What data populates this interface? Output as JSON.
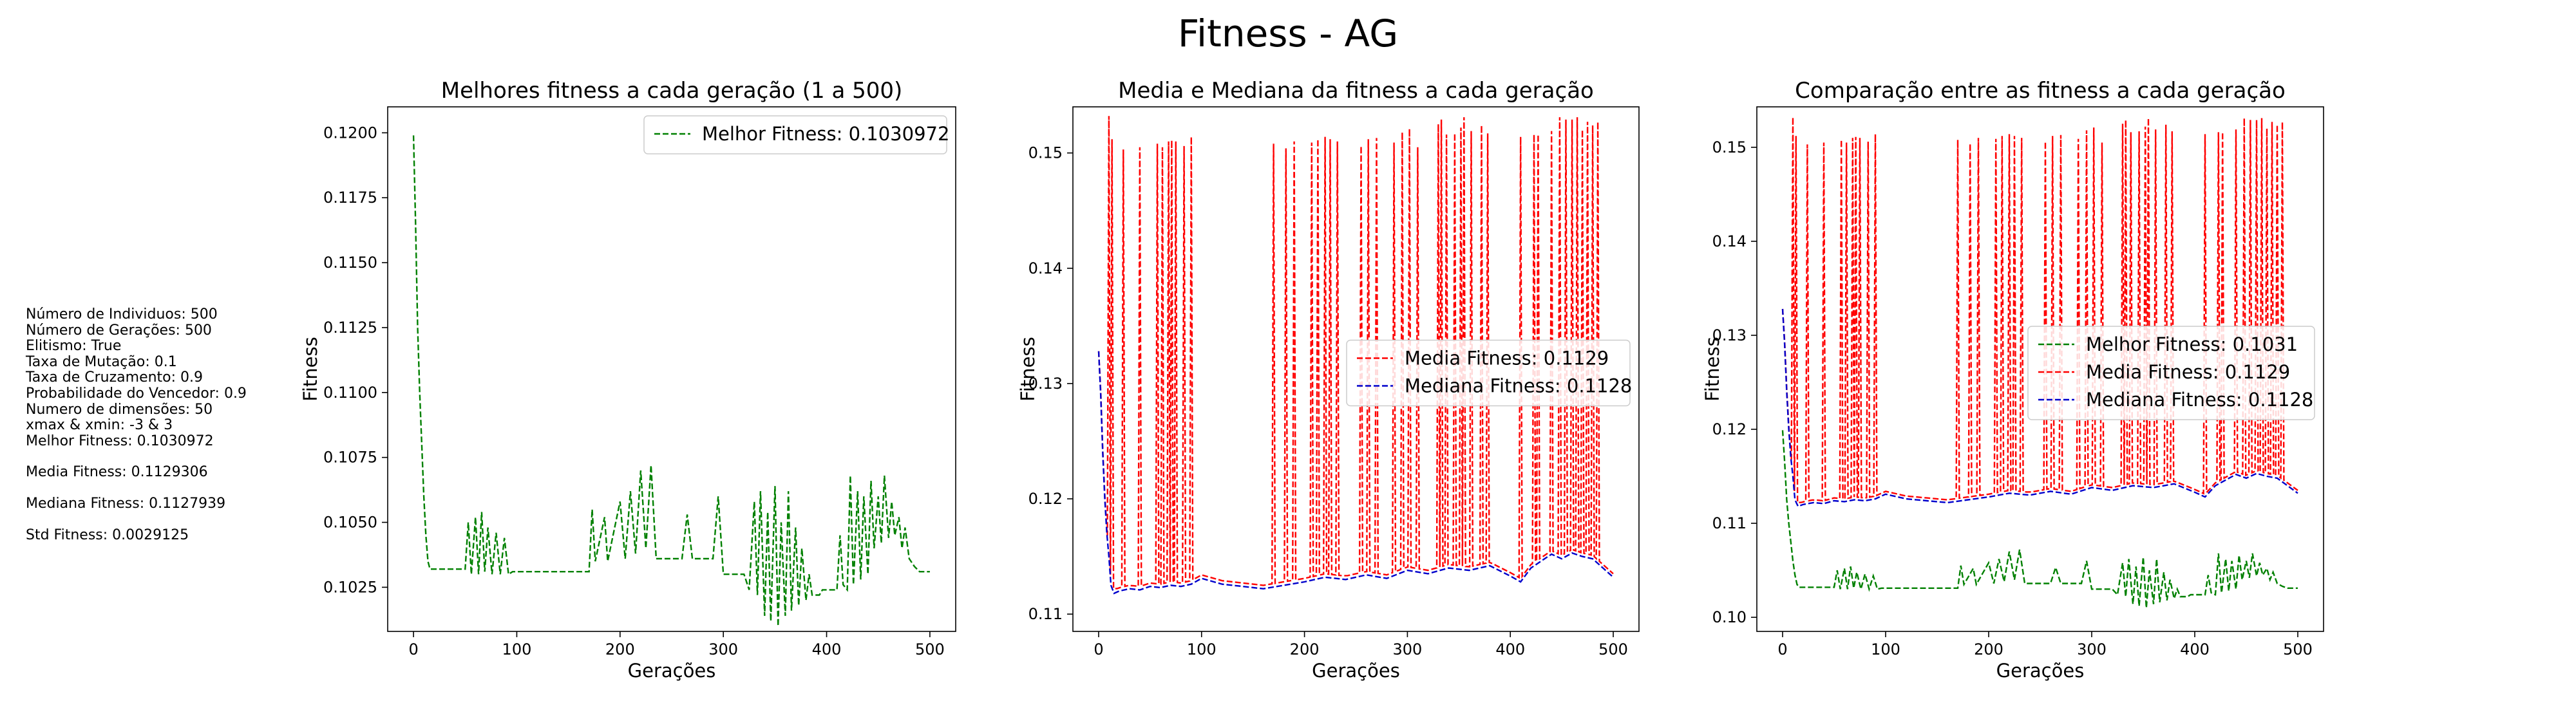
{
  "suptitle": "Fitness - AG",
  "params": {
    "individuos": "Número de Individuos: 500",
    "geracoes": "Número de Gerações: 500",
    "elitismo": "Elitismo: True",
    "mutacao": "Taxa de Mutação: 0.1",
    "cruzamento": "Taxa de Cruzamento: 0.9",
    "vencedor": "Probabilidade do Vencedor: 0.9",
    "dimensoes": "Numero de dimensões: 50",
    "xmax_xmin": "xmax & xmin: -3 & 3",
    "melhor": "Melhor Fitness: 0.1030972",
    "media": "Media Fitness: 0.1129306",
    "mediana": "Mediana Fitness: 0.1127939",
    "std": "Std Fitness: 0.0029125"
  },
  "colors": {
    "melhor": "#008000",
    "media": "#ff0000",
    "mediana": "#0000cc",
    "axes": "#000000"
  },
  "chart_data": [
    {
      "type": "line",
      "title": "Melhores fitness a cada geração (1 a 500)",
      "xlabel": "Gerações",
      "ylabel": "Fitness",
      "xlim": [
        -25,
        525
      ],
      "ylim": [
        0.1008,
        0.121
      ],
      "xticks": [
        0,
        100,
        200,
        300,
        400,
        500
      ],
      "yticks": [
        0.1025,
        0.105,
        0.1075,
        0.11,
        0.1125,
        0.115,
        0.1175,
        0.12
      ],
      "ytick_labels": [
        "0.1025",
        "0.1050",
        "0.1075",
        "0.1100",
        "0.1125",
        "0.1150",
        "0.1175",
        "0.1200"
      ],
      "legend_position": "top-right",
      "series": [
        {
          "name": "Melhor Fitness: 0.1030972",
          "color": "#008000",
          "style": "dashed",
          "x": [
            0,
            2,
            4,
            6,
            8,
            10,
            12,
            14,
            16,
            50,
            53,
            56,
            60,
            63,
            66,
            69,
            72,
            76,
            80,
            84,
            88,
            92,
            96,
            170,
            173,
            176,
            185,
            188,
            200,
            205,
            210,
            215,
            220,
            225,
            230,
            235,
            240,
            260,
            265,
            270,
            290,
            295,
            300,
            320,
            325,
            330,
            333,
            336,
            340,
            343,
            346,
            350,
            353,
            356,
            360,
            363,
            366,
            370,
            373,
            376,
            380,
            383,
            386,
            390,
            393,
            396,
            400,
            410,
            413,
            416,
            420,
            423,
            426,
            430,
            433,
            436,
            440,
            443,
            446,
            450,
            453,
            456,
            460,
            463,
            466,
            470,
            473,
            476,
            480,
            485,
            490,
            500
          ],
          "y": [
            0.1199,
            0.1165,
            0.1125,
            0.11,
            0.108,
            0.106,
            0.1045,
            0.1035,
            0.1032,
            0.1032,
            0.105,
            0.103,
            0.1052,
            0.103,
            0.1054,
            0.1031,
            0.1048,
            0.103,
            0.1046,
            0.103,
            0.1044,
            0.103,
            0.1031,
            0.1031,
            0.1055,
            0.1035,
            0.1052,
            0.1035,
            0.1058,
            0.1036,
            0.1062,
            0.1038,
            0.107,
            0.104,
            0.1072,
            0.1036,
            0.1036,
            0.1036,
            0.1053,
            0.1036,
            0.1036,
            0.106,
            0.103,
            0.103,
            0.1024,
            0.1058,
            0.1022,
            0.1062,
            0.1014,
            0.1054,
            0.1012,
            0.1064,
            0.101,
            0.105,
            0.1014,
            0.1062,
            0.1016,
            0.1048,
            0.1018,
            0.104,
            0.102,
            0.103,
            0.1022,
            0.1022,
            0.1022,
            0.1024,
            0.1024,
            0.1024,
            0.1045,
            0.1026,
            0.1024,
            0.1068,
            0.1026,
            0.1062,
            0.1028,
            0.106,
            0.103,
            0.1066,
            0.104,
            0.106,
            0.1042,
            0.1068,
            0.1044,
            0.1058,
            0.1045,
            0.1052,
            0.104,
            0.1048,
            0.1036,
            0.1033,
            0.1031,
            0.1031
          ]
        }
      ]
    },
    {
      "type": "line",
      "title": "Media e Mediana da fitness a cada geração",
      "xlabel": "Gerações",
      "ylabel": "Fitness",
      "xlim": [
        -25,
        525
      ],
      "ylim": [
        0.1085,
        0.154
      ],
      "xticks": [
        0,
        100,
        200,
        300,
        400,
        500
      ],
      "yticks": [
        0.11,
        0.12,
        0.13,
        0.14,
        0.15
      ],
      "ytick_labels": [
        "0.11",
        "0.12",
        "0.13",
        "0.14",
        "0.15"
      ],
      "legend_position": "center-right",
      "series": [
        {
          "name": "Media Fitness: 0.1129",
          "color": "#ff0000",
          "style": "dashed",
          "spikes_x": [
            10,
            13,
            24,
            40,
            57,
            62,
            68,
            71,
            75,
            83,
            90,
            170,
            182,
            190,
            207,
            213,
            220,
            225,
            232,
            255,
            262,
            270,
            287,
            295,
            302,
            310,
            330,
            333,
            338,
            346,
            352,
            355,
            362,
            372,
            378,
            410,
            423,
            427,
            440,
            448,
            454,
            460,
            465,
            470,
            475,
            480,
            485
          ],
          "spikes_y": [
            0.1532,
            0.1512,
            0.1503,
            0.1505,
            0.1508,
            0.1505,
            0.151,
            0.1511,
            0.151,
            0.1506,
            0.1514,
            0.1508,
            0.1504,
            0.151,
            0.1509,
            0.1512,
            0.1514,
            0.1512,
            0.151,
            0.1506,
            0.1512,
            0.1513,
            0.1509,
            0.1518,
            0.1521,
            0.1505,
            0.1525,
            0.1529,
            0.1516,
            0.1517,
            0.1522,
            0.1531,
            0.1519,
            0.1524,
            0.1517,
            0.1514,
            0.1516,
            0.1516,
            0.1519,
            0.1531,
            0.1529,
            0.1529,
            0.1531,
            0.152,
            0.1527,
            0.1524,
            0.1527
          ]
        },
        {
          "name": "Mediana Fitness: 0.1128",
          "color": "#0000cc",
          "style": "dashed",
          "x": [
            0,
            2,
            4,
            6,
            8,
            10,
            12,
            15,
            20,
            30,
            40,
            50,
            60,
            70,
            80,
            90,
            100,
            120,
            140,
            160,
            180,
            200,
            220,
            240,
            260,
            280,
            300,
            320,
            340,
            360,
            380,
            400,
            410,
            420,
            430,
            440,
            450,
            460,
            470,
            480,
            490,
            500
          ],
          "y": [
            0.1328,
            0.129,
            0.124,
            0.12,
            0.117,
            0.115,
            0.1125,
            0.1118,
            0.112,
            0.1122,
            0.1121,
            0.1124,
            0.1123,
            0.1125,
            0.1124,
            0.1126,
            0.1131,
            0.1126,
            0.1124,
            0.1122,
            0.1125,
            0.1128,
            0.1132,
            0.113,
            0.1134,
            0.1131,
            0.1138,
            0.1135,
            0.114,
            0.1138,
            0.1142,
            0.1133,
            0.1128,
            0.114,
            0.1146,
            0.1152,
            0.1148,
            0.1153,
            0.115,
            0.1148,
            0.114,
            0.1132
          ]
        }
      ]
    },
    {
      "type": "line",
      "title": "Comparação entre as fitness a cada geração",
      "xlabel": "Gerações",
      "ylabel": "Fitness",
      "xlim": [
        -25,
        525
      ],
      "ylim": [
        0.0985,
        0.1543
      ],
      "xticks": [
        0,
        100,
        200,
        300,
        400,
        500
      ],
      "yticks": [
        0.1,
        0.11,
        0.12,
        0.13,
        0.14,
        0.15
      ],
      "ytick_labels": [
        "0.10",
        "0.11",
        "0.12",
        "0.13",
        "0.14",
        "0.15"
      ],
      "legend_position": "center-right",
      "series": [
        {
          "name": "Melhor Fitness: 0.1031",
          "color": "#008000",
          "style": "dashed",
          "ref": "chart_data.0.series.0"
        },
        {
          "name": "Media Fitness: 0.1129",
          "color": "#ff0000",
          "style": "dashed",
          "ref": "chart_data.1.series.0"
        },
        {
          "name": "Mediana Fitness: 0.1128",
          "color": "#0000cc",
          "style": "dashed",
          "ref": "chart_data.1.series.1"
        }
      ]
    }
  ]
}
